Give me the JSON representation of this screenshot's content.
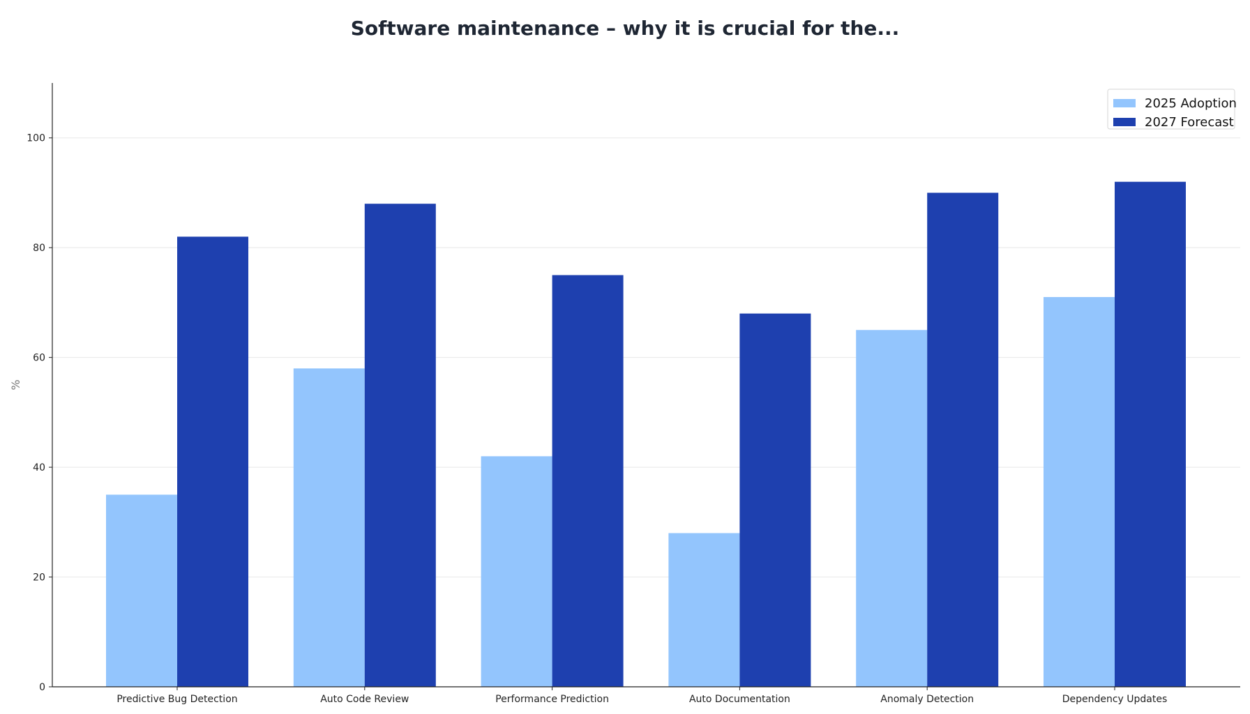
{
  "chart_data": {
    "type": "bar",
    "title": "Software maintenance – why it is crucial for the...",
    "ylabel": "%",
    "xlabel": "",
    "ylim": [
      0,
      110
    ],
    "yticks": [
      0,
      20,
      40,
      60,
      80,
      100
    ],
    "grid": true,
    "legend_position": "top-right",
    "categories": [
      "Predictive Bug Detection",
      "Auto Code Review",
      "Performance Prediction",
      "Auto Documentation",
      "Anomaly Detection",
      "Dependency Updates"
    ],
    "series": [
      {
        "name": "2025 Adoption",
        "color": "#93c5fd",
        "values": [
          35,
          58,
          42,
          28,
          65,
          71
        ]
      },
      {
        "name": "2027 Forecast",
        "color": "#1e40af",
        "values": [
          82,
          88,
          75,
          68,
          90,
          92
        ]
      }
    ]
  }
}
